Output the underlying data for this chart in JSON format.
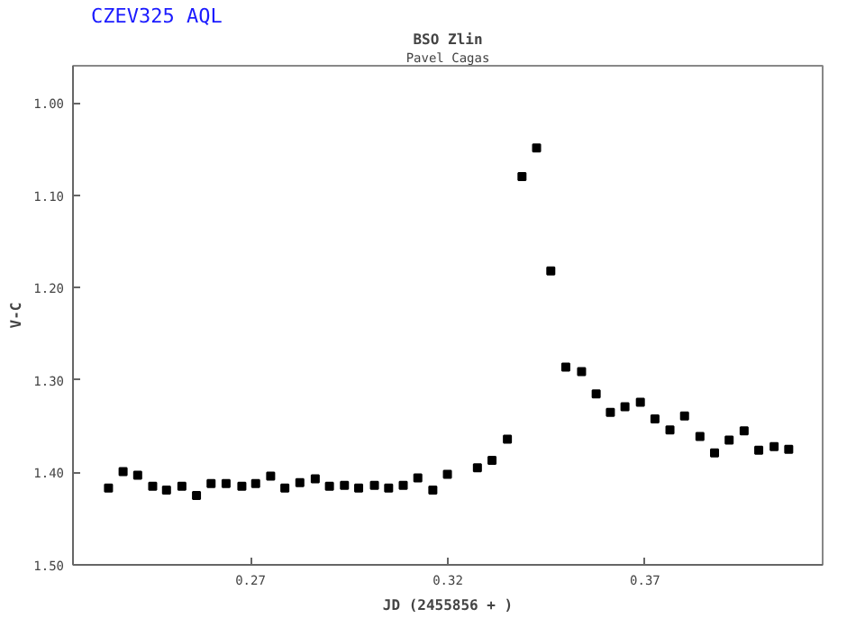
{
  "chart_data": {
    "type": "scatter",
    "title": "CZEV325 AQL",
    "subtitle": "BSO Zlin",
    "annotations": [
      "Pavel Cagas"
    ],
    "xlabel": "JD (2455856 + )",
    "ylabel": "V-C",
    "x": [
      0.234,
      0.2377,
      0.2414,
      0.2452,
      0.2487,
      0.2526,
      0.2563,
      0.26,
      0.2638,
      0.2678,
      0.2713,
      0.2751,
      0.2787,
      0.2825,
      0.2864,
      0.29,
      0.2938,
      0.2974,
      0.3014,
      0.305,
      0.3087,
      0.3124,
      0.3162,
      0.3199,
      0.3275,
      0.3312,
      0.3351,
      0.3388,
      0.3425,
      0.3461,
      0.3499,
      0.3539,
      0.3576,
      0.3612,
      0.3649,
      0.3688,
      0.3725,
      0.3763,
      0.38,
      0.3839,
      0.3876,
      0.3913,
      0.3951,
      0.3988,
      0.4027,
      0.4064
    ],
    "series": [
      {
        "color": "#000000",
        "values": [
          1.417,
          1.399,
          1.403,
          1.415,
          1.419,
          1.415,
          1.425,
          1.412,
          1.412,
          1.415,
          1.412,
          1.404,
          1.417,
          1.411,
          1.407,
          1.415,
          1.414,
          1.417,
          1.414,
          1.417,
          1.414,
          1.406,
          1.419,
          1.402,
          1.395,
          1.387,
          1.364,
          1.08,
          1.049,
          1.182,
          1.286,
          1.291,
          1.315,
          1.335,
          1.329,
          1.324,
          1.342,
          1.354,
          1.339,
          1.361,
          1.379,
          1.365,
          1.355,
          1.376,
          1.372,
          1.375
        ]
      }
    ],
    "xlim": [
      0.225,
      0.415
    ],
    "ylim": [
      1.5,
      0.96
    ],
    "xticks": [
      0.27,
      0.32,
      0.37
    ],
    "yticks": [
      {
        "value": 1.0,
        "label": "1.00"
      },
      {
        "value": 1.1,
        "label": "1.10"
      },
      {
        "value": 1.2,
        "label": "1.20"
      },
      {
        "value": 1.3,
        "label": "1.30"
      },
      {
        "value": 1.4,
        "label": "1.40"
      },
      {
        "value": 1.5,
        "label": "1.50"
      }
    ],
    "marker": "square",
    "grid": false
  }
}
